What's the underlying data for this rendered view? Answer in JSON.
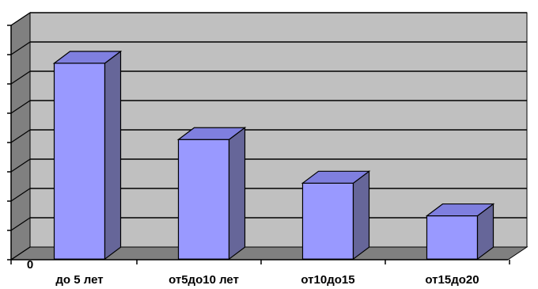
{
  "chart_data": {
    "type": "bar",
    "style": "3d-column",
    "categories": [
      "до 5 лет",
      "от5до10 лет",
      "от10до15",
      "от15до20"
    ],
    "values": [
      7.1,
      4.3,
      2.7,
      1.5
    ],
    "ylim": [
      0,
      8
    ],
    "ytick_count": 9,
    "visible_y_tick_labels": [
      "0"
    ],
    "grid": true,
    "colors": {
      "bar_front": "#9999ff",
      "bar_side": "#666699",
      "bar_top": "#7f7fdf",
      "wall": "#c0c0c0",
      "floor": "#808080"
    }
  }
}
